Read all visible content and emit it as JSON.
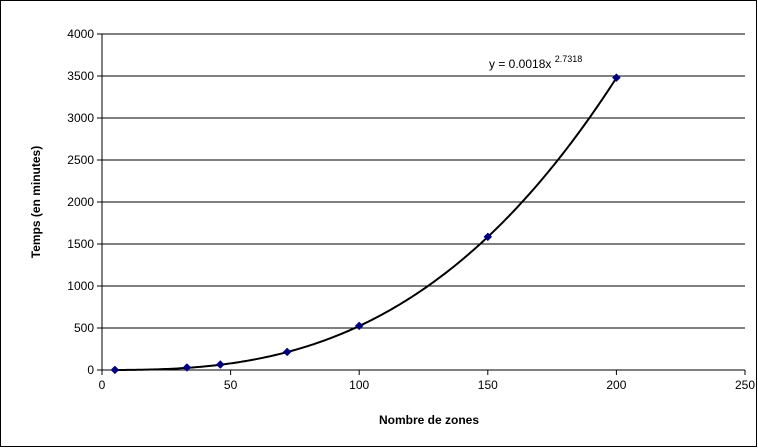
{
  "chart_data": {
    "type": "scatter",
    "title": "",
    "xlabel": "Nombre de zones",
    "ylabel": "Temps (en minutes)",
    "xlim": [
      0,
      250
    ],
    "ylim": [
      0,
      4000
    ],
    "x_ticks": [
      0,
      50,
      100,
      150,
      200,
      250
    ],
    "y_ticks": [
      0,
      500,
      1000,
      1500,
      2000,
      2500,
      3000,
      3500,
      4000
    ],
    "x_tick_labels": [
      "0",
      "50",
      "100",
      "150",
      "200",
      "250"
    ],
    "y_tick_labels": [
      "0",
      "500",
      "1000",
      "1500",
      "2000",
      "2500",
      "3000",
      "3500",
      "4000"
    ],
    "grid": "horizontal",
    "legend": "none",
    "series": [
      {
        "x": [
          5,
          33,
          46,
          72,
          100,
          150,
          200
        ],
        "y": [
          1,
          30,
          65,
          215,
          525,
          1585,
          3480
        ],
        "marker": "diamond",
        "color": "#000080"
      }
    ],
    "trendline": {
      "type": "power",
      "coefficient": 0.0018,
      "exponent": 2.7318,
      "equation_base": "y = 0.0018x",
      "equation_exponent": "2.7318",
      "color": "#000000"
    }
  }
}
